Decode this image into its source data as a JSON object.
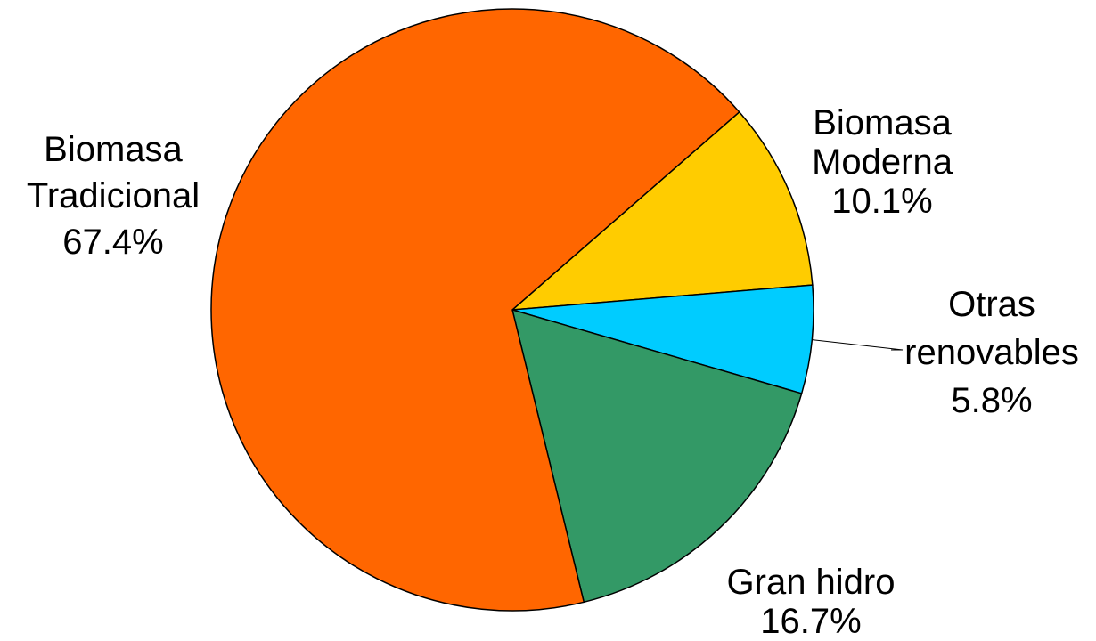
{
  "chart_data": {
    "type": "pie",
    "categories": [
      "Biomasa\nModerna",
      "Otras\nrenovables",
      "Gran hidro",
      "Biomasa\nTradicional"
    ],
    "values": [
      10.1,
      5.8,
      16.7,
      67.4
    ],
    "value_labels": [
      "10.1%",
      "5.8%",
      "16.7%",
      "67.4%"
    ],
    "colors": [
      "#ffcc00",
      "#00ccff",
      "#339966",
      "#ff6600"
    ]
  }
}
